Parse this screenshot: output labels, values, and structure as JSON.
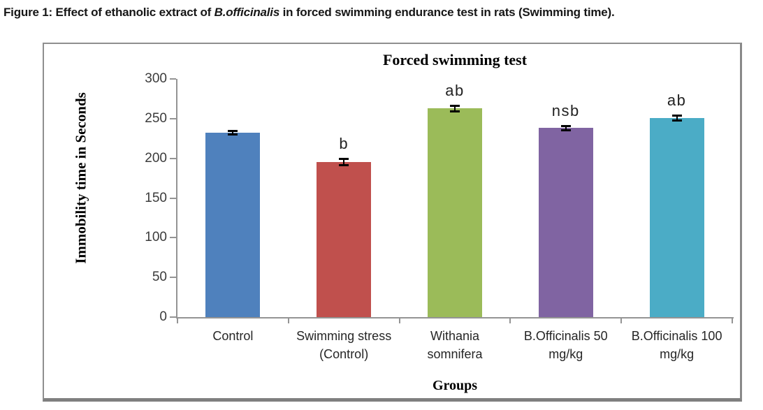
{
  "figure_caption": {
    "prefix": "Figure 1: Effect of ethanolic extract of ",
    "species": "B.officinalis",
    "suffix": " in forced swimming endurance test in rats (Swimming time)."
  },
  "chart_data": {
    "type": "bar",
    "title": "Forced swimming test",
    "xlabel": "Groups",
    "ylabel": "Immobility time in Seconds",
    "categories": [
      "Control",
      "Swimming stress (Control)",
      "Withania somnifera",
      "B.Officinalis 50 mg/kg",
      "B.Officinalis 100 mg/kg"
    ],
    "label_lines": [
      [
        "Control"
      ],
      [
        "Swimming stress",
        "(Control)"
      ],
      [
        "Withania",
        "somnifera"
      ],
      [
        "B.Officinalis 50",
        "mg/kg"
      ],
      [
        "B.Officinalis 100",
        "mg/kg"
      ]
    ],
    "values": [
      232,
      195,
      263,
      238,
      251
    ],
    "errors": [
      2.5,
      4.5,
      4,
      3,
      3.5
    ],
    "annotations": [
      "",
      "b",
      "ab",
      "nsb",
      "ab"
    ],
    "bar_colors": [
      "#4f81bd",
      "#c0504d",
      "#9bbb59",
      "#8064a2",
      "#4bacc6"
    ],
    "axis_color": "#949494",
    "error_bar_color": "#000000",
    "ylim": [
      0,
      300
    ],
    "ytick_step": 50,
    "grid": false,
    "legend": "none"
  }
}
